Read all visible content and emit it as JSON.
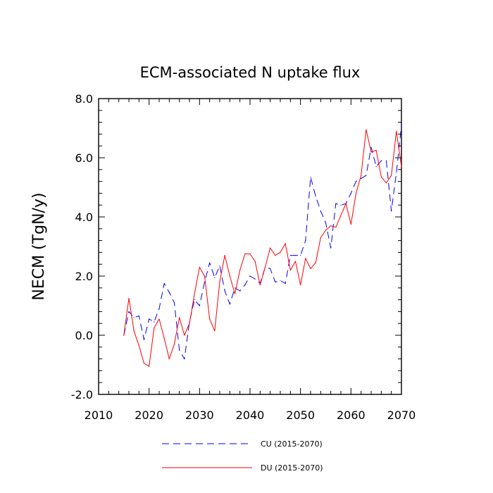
{
  "chart_data": {
    "type": "line",
    "title": "ECM-associated N uptake flux",
    "xlabel": "",
    "ylabel": "NECM  (TgN/y)",
    "xlim": [
      2010,
      2070
    ],
    "ylim": [
      -2.0,
      8.0
    ],
    "x_ticks": [
      2010,
      2020,
      2030,
      2040,
      2050,
      2060,
      2070
    ],
    "y_ticks": [
      -2.0,
      0.0,
      2.0,
      4.0,
      6.0,
      8.0
    ],
    "x_tick_labels": [
      "2010",
      "2020",
      "2030",
      "2040",
      "2050",
      "2060",
      "2070"
    ],
    "y_tick_labels": [
      "-2.0",
      "0.0",
      "2.0",
      "4.0",
      "6.0",
      "8.0"
    ],
    "legend_position": "bottom-center",
    "x": [
      2015,
      2016,
      2017,
      2018,
      2019,
      2020,
      2021,
      2022,
      2023,
      2024,
      2025,
      2026,
      2027,
      2028,
      2029,
      2030,
      2031,
      2032,
      2033,
      2034,
      2035,
      2036,
      2037,
      2038,
      2039,
      2040,
      2041,
      2042,
      2043,
      2044,
      2045,
      2046,
      2047,
      2048,
      2049,
      2050,
      2051,
      2052,
      2053,
      2054,
      2055,
      2056,
      2057,
      2058,
      2059,
      2060,
      2061,
      2062,
      2063,
      2064,
      2065,
      2066,
      2067,
      2068,
      2069,
      2070
    ],
    "series": [
      {
        "name": "CU (2015-2070)",
        "color": "#0000ff",
        "dash": "dashed",
        "values": [
          0.0,
          0.8,
          0.6,
          0.65,
          -0.15,
          0.55,
          0.45,
          0.9,
          1.75,
          1.45,
          1.1,
          -0.5,
          -0.8,
          0.45,
          1.2,
          1.0,
          1.8,
          2.45,
          1.95,
          2.35,
          1.5,
          1.05,
          1.6,
          1.5,
          1.7,
          2.0,
          1.9,
          1.75,
          2.3,
          2.25,
          1.8,
          1.85,
          1.75,
          2.7,
          2.7,
          2.7,
          3.2,
          5.35,
          4.7,
          4.2,
          3.8,
          2.95,
          4.45,
          4.4,
          4.45,
          4.8,
          5.2,
          5.3,
          5.4,
          6.35,
          5.7,
          5.9,
          5.9,
          4.2,
          5.5,
          7.1
        ]
      },
      {
        "name": "DU (2015-2070)",
        "color": "#ff0000",
        "dash": "solid",
        "values": [
          0.0,
          1.25,
          0.15,
          -0.35,
          -0.95,
          -1.05,
          0.25,
          0.55,
          -0.1,
          -0.8,
          -0.3,
          0.6,
          0.0,
          0.4,
          1.4,
          2.3,
          2.0,
          0.55,
          0.15,
          1.8,
          2.7,
          2.0,
          1.4,
          2.2,
          2.75,
          2.75,
          2.5,
          1.7,
          2.3,
          2.95,
          2.7,
          2.8,
          3.1,
          2.2,
          2.5,
          1.7,
          2.6,
          2.25,
          2.45,
          3.3,
          3.55,
          3.7,
          3.65,
          4.05,
          4.45,
          3.75,
          4.8,
          5.4,
          6.95,
          6.2,
          6.25,
          5.35,
          5.15,
          5.4,
          6.9,
          5.7
        ]
      }
    ]
  }
}
